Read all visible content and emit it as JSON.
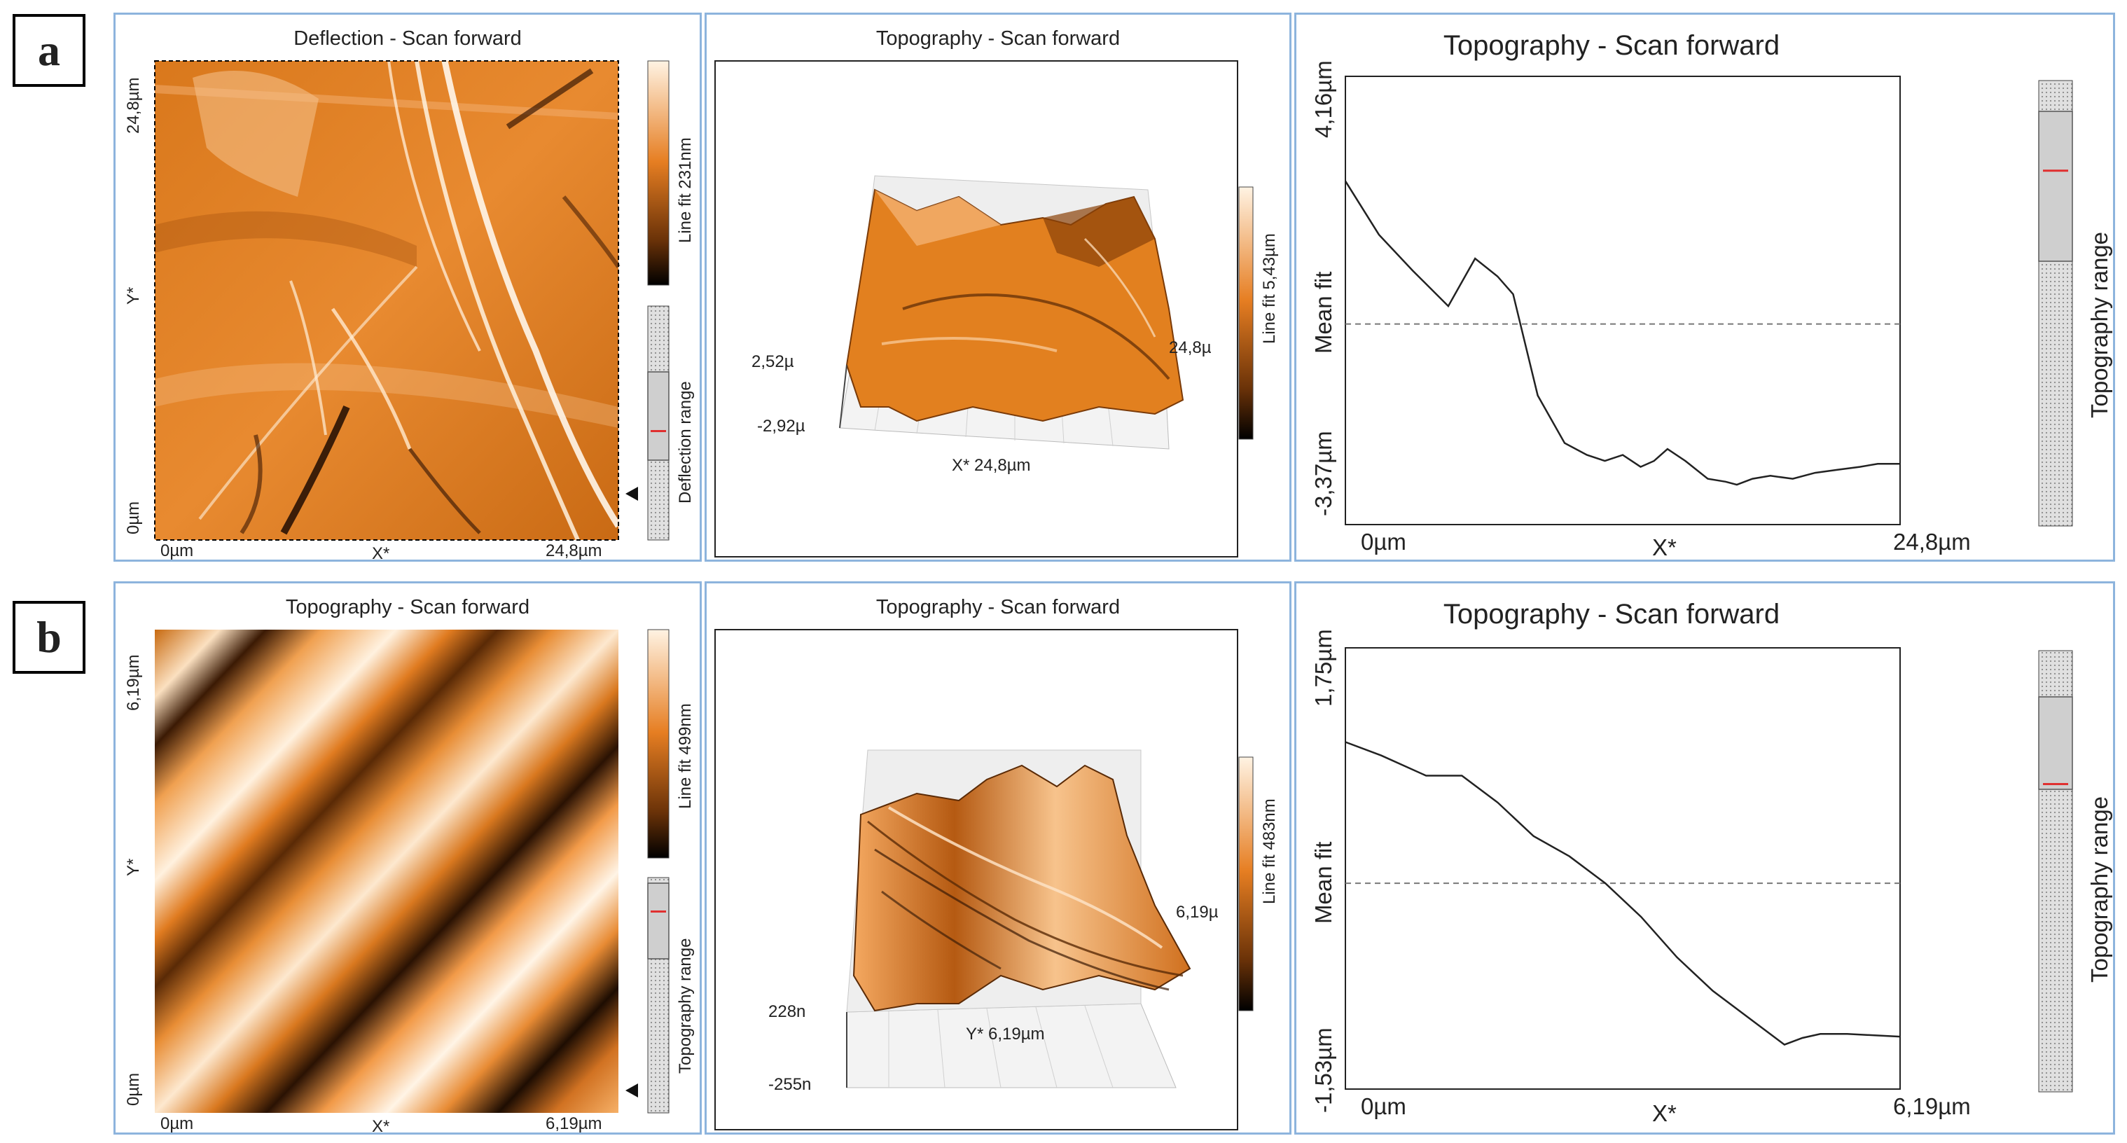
{
  "figure_labels": {
    "a": "a",
    "b": "b"
  },
  "colors": {
    "panel_border": "#8db4dd",
    "afm_light": "#fff3e3",
    "afm_orange": "#e67e22",
    "afm_dark": "#000000",
    "marker_red": "#e03030"
  },
  "row_a": {
    "image": {
      "title": "Deflection - Scan forward",
      "y_top": "24,8µm",
      "y_bottom": "0µm",
      "y_axis": "Y*",
      "x_left": "0µm",
      "x_right": "24,8µm",
      "x_axis": "X*",
      "colorbar_label": "Line fit 231nm",
      "range_label": "Deflection range",
      "range_marker_fraction": 0.53
    },
    "view3d": {
      "title": "Topography - Scan forward",
      "z_high": "2,52µ",
      "z_low": "-2,92µ",
      "side_label": "24,8µ",
      "base_label": "X* 24,8µm",
      "colorbar_label": "Line fit 5,43µm"
    },
    "profile": {
      "title": "Topography - Scan forward",
      "y_max": "4,16µm",
      "y_min": "-3,37µm",
      "y_label": "Mean fit",
      "x_left": "0µm",
      "x_right": "24,8µm",
      "x_axis": "X*",
      "range_label": "Topography range",
      "range_marker_fraction": 0.2
    }
  },
  "row_b": {
    "image": {
      "title": "Topography - Scan forward",
      "y_top": "6,19µm",
      "y_bottom": "0µm",
      "y_axis": "Y*",
      "x_left": "0µm",
      "x_right": "6,19µm",
      "x_axis": "X*",
      "colorbar_label": "Line fit 499nm",
      "range_label": "Topography range",
      "range_marker_fraction": 0.14
    },
    "view3d": {
      "title": "Topography - Scan forward",
      "z_high": "228n",
      "z_low": "-255n",
      "side_label": "6,19µ",
      "base_label": "Y* 6,19µm",
      "colorbar_label": "Line fit 483nm"
    },
    "profile": {
      "title": "Topography - Scan forward",
      "y_max": "1,75µm",
      "y_min": "-1,53µm",
      "y_label": "Mean fit",
      "x_left": "0µm",
      "x_right": "6,19µm",
      "x_axis": "X*",
      "range_label": "Topography range",
      "range_marker_fraction": 0.3
    }
  },
  "chart_data": [
    {
      "type": "line",
      "title": "Topography - Scan forward",
      "xlabel": "X*",
      "ylabel": "Mean fit",
      "xlim": [
        0,
        24.8
      ],
      "ylim": [
        -3.37,
        4.16
      ],
      "x": [
        0,
        1.5,
        3,
        4.6,
        5.8,
        6.8,
        7.5,
        8.6,
        9.8,
        10.8,
        11.6,
        12.4,
        13.2,
        13.8,
        14.4,
        15.2,
        16.2,
        17,
        17.5,
        18.2,
        19,
        20,
        21,
        22,
        23,
        23.8,
        24.8
      ],
      "y": [
        2.4,
        1.5,
        0.9,
        0.3,
        1.1,
        0.8,
        0.5,
        -1.2,
        -2.0,
        -2.2,
        -2.3,
        -2.2,
        -2.4,
        -2.3,
        -2.1,
        -2.3,
        -2.6,
        -2.65,
        -2.7,
        -2.6,
        -2.55,
        -2.6,
        -2.5,
        -2.45,
        -2.4,
        -2.35,
        -2.35
      ],
      "mean_line": 0
    },
    {
      "type": "line",
      "title": "Topography - Scan forward",
      "xlabel": "X*",
      "ylabel": "Mean fit",
      "xlim": [
        0,
        6.19
      ],
      "ylim": [
        -1.53,
        1.75
      ],
      "x": [
        0,
        0.4,
        0.9,
        1.3,
        1.7,
        2.1,
        2.5,
        2.9,
        3.3,
        3.7,
        4.1,
        4.5,
        4.9,
        5.1,
        5.3,
        5.6,
        6.19
      ],
      "y": [
        1.05,
        0.95,
        0.8,
        0.8,
        0.6,
        0.35,
        0.2,
        0.0,
        -0.25,
        -0.55,
        -0.8,
        -1.0,
        -1.2,
        -1.15,
        -1.12,
        -1.12,
        -1.14
      ],
      "mean_line": 0
    }
  ]
}
